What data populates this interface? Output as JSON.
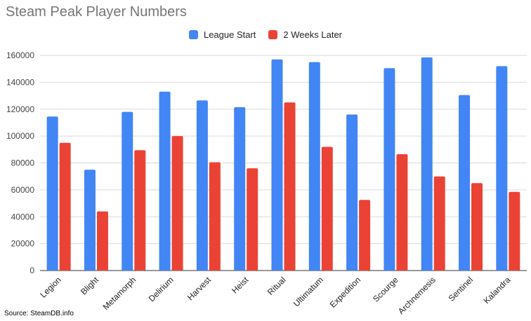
{
  "chart_data": {
    "type": "bar",
    "title": "Steam Peak Player Numbers",
    "categories": [
      "Legion",
      "Blight",
      "Metamorph",
      "Delirium",
      "Harvest",
      "Heist",
      "Ritual",
      "Ultimatum",
      "Expedition",
      "Scourge",
      "Archnemesis",
      "Sentinel",
      "Kalandra"
    ],
    "series": [
      {
        "name": "League Start",
        "color": "#4285f4",
        "values": [
          114500,
          75000,
          118000,
          133000,
          126500,
          121500,
          157000,
          155000,
          116000,
          150500,
          158500,
          130500,
          152000
        ]
      },
      {
        "name": "2 Weeks Later",
        "color": "#ea4335",
        "values": [
          95000,
          44000,
          89500,
          100000,
          80500,
          76000,
          125000,
          92000,
          52500,
          86500,
          70000,
          65000,
          58500
        ]
      }
    ],
    "ylim": [
      0,
      160000
    ],
    "yticks": [
      0,
      20000,
      40000,
      60000,
      80000,
      100000,
      120000,
      140000,
      160000
    ],
    "xlabel": "",
    "ylabel": "",
    "grid": true,
    "legend_position": "top"
  },
  "source": "Source: SteamDB.info"
}
